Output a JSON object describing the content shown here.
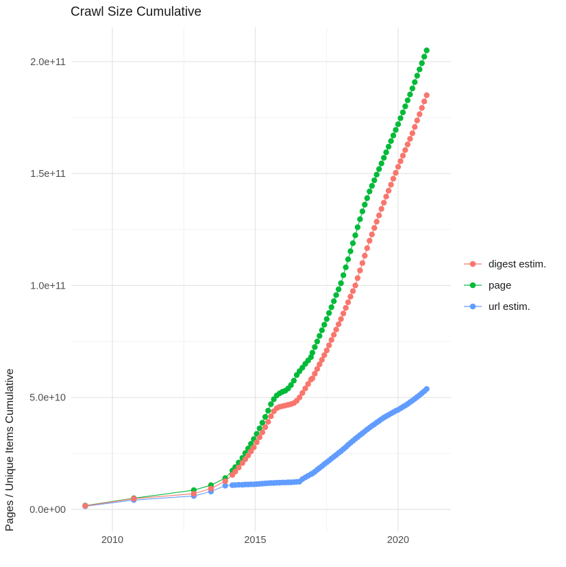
{
  "chart_data": {
    "type": "line",
    "title": "Crawl Size Cumulative",
    "xlabel": "",
    "ylabel": "Pages / Unique Items Cumulative",
    "grid": true,
    "legend_position": "right",
    "value_unit": "1e9 (values below are in billions; y labels use scientific notation)",
    "xlim": [
      2008.55,
      2021.85
    ],
    "ylim": [
      0,
      215000000000
    ],
    "x_ticks": {
      "values": [
        2010,
        2015,
        2020
      ],
      "labels": [
        "2010",
        "2015",
        "2020"
      ]
    },
    "x_minor_ticks": [
      2012.5,
      2017.5
    ],
    "y_ticks": {
      "values": [
        0,
        50,
        100,
        150,
        200
      ],
      "labels": [
        "0.0e+00",
        "5.0e+10",
        "1.0e+11",
        "1.5e+11",
        "2.0e+11"
      ]
    },
    "y_minor_ticks": [
      25,
      75,
      125,
      175
    ],
    "series": [
      {
        "name": "digest estim.",
        "color": "#F8766D",
        "points": [
          [
            2009.05,
            1.6
          ],
          [
            2010.75,
            4.8
          ],
          [
            2012.85,
            7.0
          ],
          [
            2013.45,
            9.3
          ],
          [
            2013.95,
            12.6
          ],
          [
            2014.2,
            15.4
          ],
          [
            2014.3,
            16.9
          ],
          [
            2014.42,
            18.7
          ],
          [
            2014.55,
            20.7
          ],
          [
            2014.65,
            22.4
          ],
          [
            2014.75,
            24.1
          ],
          [
            2014.85,
            25.9
          ],
          [
            2014.95,
            27.7
          ],
          [
            2015.05,
            30.0
          ],
          [
            2015.15,
            32.2
          ],
          [
            2015.25,
            34.4
          ],
          [
            2015.35,
            36.7
          ],
          [
            2015.45,
            39.1
          ],
          [
            2015.55,
            41.6
          ],
          [
            2015.65,
            43.8
          ],
          [
            2015.75,
            45.2
          ],
          [
            2015.85,
            45.8
          ],
          [
            2015.95,
            46.1
          ],
          [
            2016.05,
            46.4
          ],
          [
            2016.15,
            46.7
          ],
          [
            2016.25,
            47.0
          ],
          [
            2016.35,
            47.5
          ],
          [
            2016.45,
            48.5
          ],
          [
            2016.55,
            50.0
          ],
          [
            2016.65,
            52.0
          ],
          [
            2016.75,
            54.0
          ],
          [
            2016.85,
            56.0
          ],
          [
            2016.95,
            58.0
          ],
          [
            2017.0,
            58.5
          ],
          [
            2017.083,
            60.6
          ],
          [
            2017.167,
            62.7
          ],
          [
            2017.25,
            64.8
          ],
          [
            2017.333,
            66.8
          ],
          [
            2017.417,
            68.9
          ],
          [
            2017.5,
            71.0
          ],
          [
            2017.583,
            73.3
          ],
          [
            2017.667,
            75.7
          ],
          [
            2017.75,
            78.0
          ],
          [
            2017.833,
            80.3
          ],
          [
            2017.917,
            82.7
          ],
          [
            2018.0,
            85.0
          ],
          [
            2018.083,
            87.5
          ],
          [
            2018.167,
            90.0
          ],
          [
            2018.25,
            92.5
          ],
          [
            2018.333,
            95.0
          ],
          [
            2018.417,
            97.5
          ],
          [
            2018.5,
            100.0
          ],
          [
            2018.583,
            103.3
          ],
          [
            2018.667,
            106.7
          ],
          [
            2018.75,
            110.0
          ],
          [
            2018.833,
            113.3
          ],
          [
            2018.917,
            116.7
          ],
          [
            2019.0,
            120.0
          ],
          [
            2019.083,
            122.8
          ],
          [
            2019.167,
            125.7
          ],
          [
            2019.25,
            128.5
          ],
          [
            2019.333,
            131.3
          ],
          [
            2019.417,
            134.2
          ],
          [
            2019.5,
            137.0
          ],
          [
            2019.583,
            139.7
          ],
          [
            2019.667,
            142.3
          ],
          [
            2019.75,
            145.0
          ],
          [
            2019.833,
            147.7
          ],
          [
            2019.917,
            150.3
          ],
          [
            2020.0,
            153.0
          ],
          [
            2020.083,
            155.5
          ],
          [
            2020.167,
            158.0
          ],
          [
            2020.25,
            160.5
          ],
          [
            2020.333,
            163.0
          ],
          [
            2020.417,
            165.5
          ],
          [
            2020.5,
            168.0
          ],
          [
            2020.583,
            170.8
          ],
          [
            2020.667,
            173.7
          ],
          [
            2020.75,
            176.5
          ],
          [
            2020.833,
            179.3
          ],
          [
            2020.917,
            182.2
          ],
          [
            2021.0,
            185.0
          ]
        ]
      },
      {
        "name": "page",
        "color": "#00BA38",
        "points": [
          [
            2009.05,
            1.7
          ],
          [
            2010.75,
            5.0
          ],
          [
            2012.85,
            8.6
          ],
          [
            2013.45,
            10.8
          ],
          [
            2013.95,
            14.0
          ],
          [
            2014.2,
            17.3
          ],
          [
            2014.3,
            18.9
          ],
          [
            2014.42,
            20.9
          ],
          [
            2014.55,
            23.0
          ],
          [
            2014.65,
            25.1
          ],
          [
            2014.75,
            27.2
          ],
          [
            2014.85,
            29.3
          ],
          [
            2014.95,
            31.4
          ],
          [
            2015.05,
            33.7
          ],
          [
            2015.15,
            36.2
          ],
          [
            2015.25,
            38.7
          ],
          [
            2015.35,
            41.3
          ],
          [
            2015.45,
            44.1
          ],
          [
            2015.55,
            47.0
          ],
          [
            2015.65,
            49.2
          ],
          [
            2015.75,
            50.9
          ],
          [
            2015.85,
            51.8
          ],
          [
            2015.95,
            52.5
          ],
          [
            2016.05,
            53.0
          ],
          [
            2016.15,
            54.0
          ],
          [
            2016.25,
            55.5
          ],
          [
            2016.35,
            57.5
          ],
          [
            2016.45,
            60.0
          ],
          [
            2016.55,
            61.7
          ],
          [
            2016.65,
            63.3
          ],
          [
            2016.75,
            65.0
          ],
          [
            2016.85,
            66.5
          ],
          [
            2016.95,
            68.0
          ],
          [
            2017.0,
            70.0
          ],
          [
            2017.083,
            72.5
          ],
          [
            2017.167,
            75.0
          ],
          [
            2017.25,
            77.5
          ],
          [
            2017.333,
            80.0
          ],
          [
            2017.417,
            82.5
          ],
          [
            2017.5,
            85.0
          ],
          [
            2017.583,
            87.7
          ],
          [
            2017.667,
            90.3
          ],
          [
            2017.75,
            93.0
          ],
          [
            2017.833,
            95.7
          ],
          [
            2017.917,
            98.3
          ],
          [
            2018.0,
            101.0
          ],
          [
            2018.083,
            104.6
          ],
          [
            2018.167,
            108.1
          ],
          [
            2018.25,
            111.7
          ],
          [
            2018.333,
            115.3
          ],
          [
            2018.417,
            118.9
          ],
          [
            2018.5,
            122.4
          ],
          [
            2018.583,
            126.0
          ],
          [
            2018.667,
            129.6
          ],
          [
            2018.75,
            133.1
          ],
          [
            2018.833,
            136.1
          ],
          [
            2018.917,
            139.0
          ],
          [
            2019.0,
            142.0
          ],
          [
            2019.083,
            144.5
          ],
          [
            2019.167,
            147.0
          ],
          [
            2019.25,
            149.5
          ],
          [
            2019.333,
            152.0
          ],
          [
            2019.417,
            154.5
          ],
          [
            2019.5,
            157.0
          ],
          [
            2019.583,
            159.5
          ],
          [
            2019.667,
            162.0
          ],
          [
            2019.75,
            164.5
          ],
          [
            2019.833,
            167.0
          ],
          [
            2019.917,
            169.5
          ],
          [
            2020.0,
            172.0
          ],
          [
            2020.083,
            174.7
          ],
          [
            2020.167,
            177.3
          ],
          [
            2020.25,
            180.0
          ],
          [
            2020.333,
            182.7
          ],
          [
            2020.417,
            185.3
          ],
          [
            2020.5,
            188.0
          ],
          [
            2020.583,
            190.8
          ],
          [
            2020.667,
            193.7
          ],
          [
            2020.75,
            196.5
          ],
          [
            2020.833,
            199.3
          ],
          [
            2020.917,
            202.2
          ],
          [
            2021.0,
            205.0
          ]
        ]
      },
      {
        "name": "url estim.",
        "color": "#619CFF",
        "points": [
          [
            2009.05,
            1.4
          ],
          [
            2010.75,
            4.2
          ],
          [
            2012.85,
            6.0
          ],
          [
            2013.45,
            8.0
          ],
          [
            2013.95,
            10.6
          ],
          [
            2014.2,
            10.8
          ],
          [
            2014.3,
            10.9
          ],
          [
            2014.42,
            11.0
          ],
          [
            2014.55,
            11.0
          ],
          [
            2014.65,
            11.1
          ],
          [
            2014.75,
            11.1
          ],
          [
            2014.85,
            11.2
          ],
          [
            2014.95,
            11.2
          ],
          [
            2015.05,
            11.3
          ],
          [
            2015.15,
            11.4
          ],
          [
            2015.25,
            11.5
          ],
          [
            2015.35,
            11.6
          ],
          [
            2015.45,
            11.7
          ],
          [
            2015.55,
            11.8
          ],
          [
            2015.65,
            11.8
          ],
          [
            2015.75,
            11.9
          ],
          [
            2015.85,
            11.9
          ],
          [
            2015.95,
            12.0
          ],
          [
            2016.05,
            12.0
          ],
          [
            2016.15,
            12.1
          ],
          [
            2016.25,
            12.1
          ],
          [
            2016.35,
            12.2
          ],
          [
            2016.45,
            12.3
          ],
          [
            2016.55,
            12.4
          ],
          [
            2016.65,
            13.5
          ],
          [
            2016.75,
            14.3
          ],
          [
            2016.85,
            15.0
          ],
          [
            2016.95,
            15.7
          ],
          [
            2017.0,
            16.0
          ],
          [
            2017.083,
            16.8
          ],
          [
            2017.167,
            17.7
          ],
          [
            2017.25,
            18.5
          ],
          [
            2017.333,
            19.3
          ],
          [
            2017.417,
            20.2
          ],
          [
            2017.5,
            21.0
          ],
          [
            2017.583,
            21.8
          ],
          [
            2017.667,
            22.7
          ],
          [
            2017.75,
            23.5
          ],
          [
            2017.833,
            24.3
          ],
          [
            2017.917,
            25.2
          ],
          [
            2018.0,
            26.0
          ],
          [
            2018.083,
            26.9
          ],
          [
            2018.167,
            27.8
          ],
          [
            2018.25,
            28.8
          ],
          [
            2018.333,
            29.7
          ],
          [
            2018.417,
            30.6
          ],
          [
            2018.5,
            31.5
          ],
          [
            2018.583,
            32.3
          ],
          [
            2018.667,
            33.2
          ],
          [
            2018.75,
            34.0
          ],
          [
            2018.833,
            34.8
          ],
          [
            2018.917,
            35.7
          ],
          [
            2019.0,
            36.5
          ],
          [
            2019.083,
            37.3
          ],
          [
            2019.167,
            38.0
          ],
          [
            2019.25,
            38.8
          ],
          [
            2019.333,
            39.5
          ],
          [
            2019.417,
            40.3
          ],
          [
            2019.5,
            41.0
          ],
          [
            2019.583,
            41.6
          ],
          [
            2019.667,
            42.2
          ],
          [
            2019.75,
            42.8
          ],
          [
            2019.833,
            43.4
          ],
          [
            2019.917,
            44.0
          ],
          [
            2020.0,
            44.5
          ],
          [
            2020.083,
            45.1
          ],
          [
            2020.167,
            45.8
          ],
          [
            2020.25,
            46.4
          ],
          [
            2020.333,
            47.1
          ],
          [
            2020.417,
            47.9
          ],
          [
            2020.5,
            48.6
          ],
          [
            2020.583,
            49.4
          ],
          [
            2020.667,
            50.2
          ],
          [
            2020.75,
            51.0
          ],
          [
            2020.833,
            51.9
          ],
          [
            2020.917,
            52.8
          ],
          [
            2021.0,
            53.8
          ]
        ]
      }
    ]
  },
  "legend": {
    "items": [
      {
        "label": "digest estim.",
        "color": "#F8766D"
      },
      {
        "label": "page",
        "color": "#00BA38"
      },
      {
        "label": "url estim.",
        "color": "#619CFF"
      }
    ]
  },
  "colors": {
    "grid_major": "#e4e4e4",
    "grid_minor": "#efefef",
    "axis_text": "#4d4d4d",
    "text": "#1a1a1a",
    "background": "#ffffff"
  }
}
